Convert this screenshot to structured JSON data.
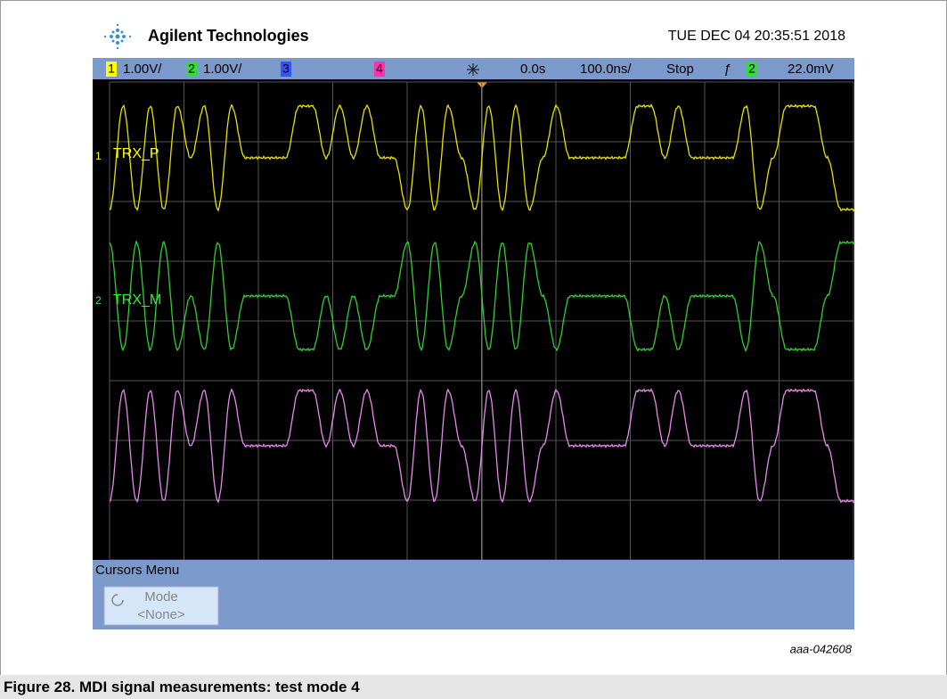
{
  "header": {
    "brand": "Agilent Technologies",
    "datetime": "TUE DEC 04 20:35:51 2018"
  },
  "toolbar": {
    "ch1": "1",
    "ch1_scale": "1.00V/",
    "ch2": "2",
    "ch2_scale": "1.00V/",
    "ch3": "3",
    "ch4": "4",
    "delay": "0.0s",
    "timebase": "100.0ns/",
    "run_state": "Stop",
    "trigger_source": "2",
    "trigger_level": "22.0mV"
  },
  "channels": [
    {
      "marker": "1",
      "label": "TRX_P"
    },
    {
      "marker": "2",
      "label": "TRX_M"
    }
  ],
  "menu": {
    "title": "Cursors Menu",
    "button_label": "Mode",
    "button_value": "<None>"
  },
  "figure_id": "aaa-042608",
  "caption": "Figure 28.  MDI signal measurements: test mode 4"
}
